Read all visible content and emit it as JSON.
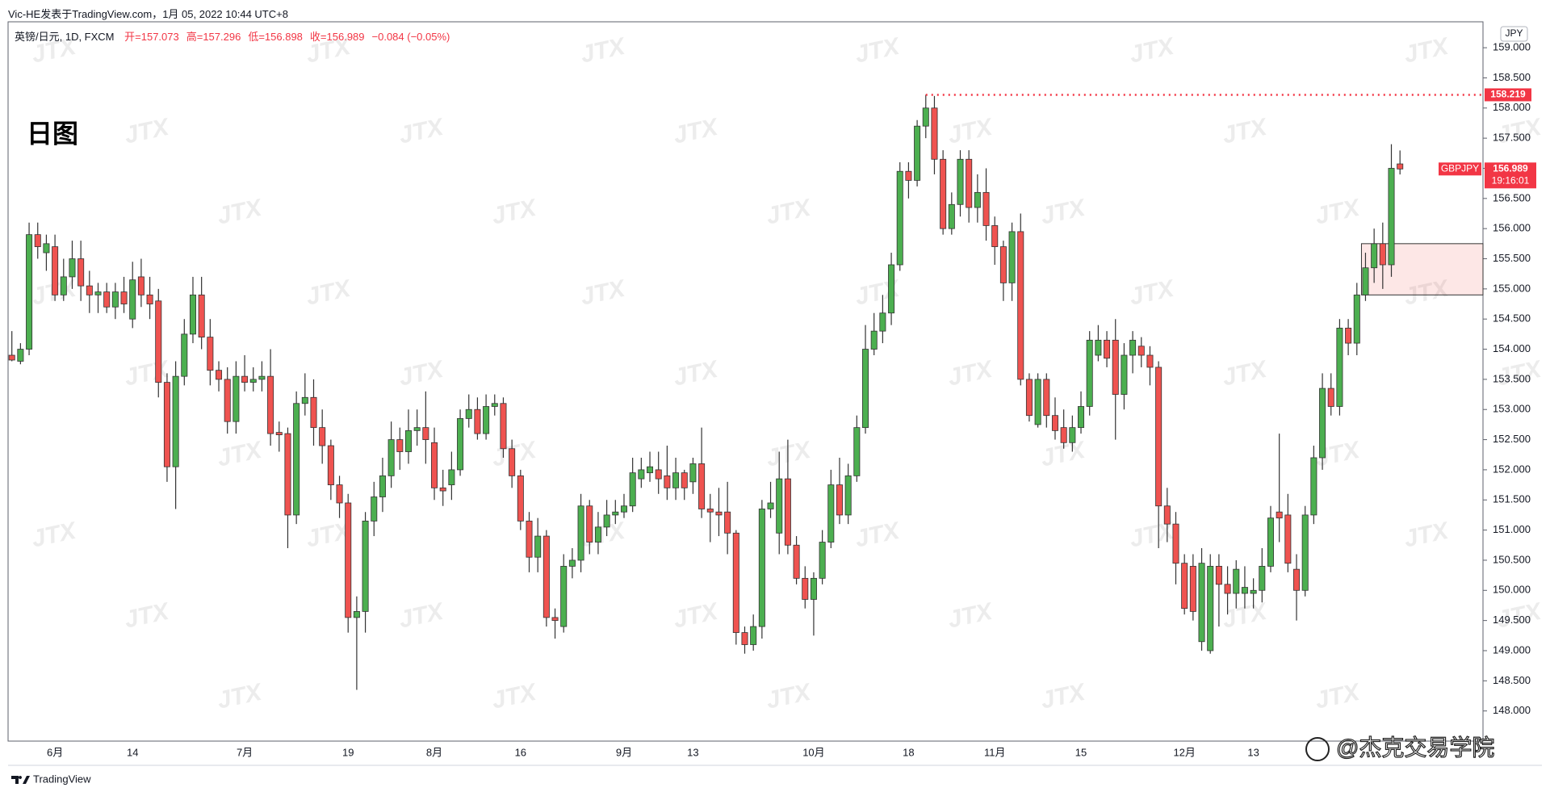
{
  "chart_data": {
    "type": "candlestick",
    "author_line": "Vic-HE发表于TradingView.com，1月 05, 2022 10:44 UTC+8",
    "symbol": "英镑/日元, 1D, FXCM",
    "ohlc_labels": [
      "开=157.073",
      "高=157.296",
      "低=156.898",
      "收=156.989"
    ],
    "change": "−0.084 (−0.05%)",
    "annotation": "日图",
    "currency": "JPY",
    "countdown": "19:16:01",
    "footer": "TradingView",
    "watermark": "JTX",
    "credit": "@杰克交易学院",
    "up_color": "#4caf50",
    "down_color": "#ef5350",
    "wick_color": "#333333",
    "grid": false,
    "ylim": [
      147.5,
      159.43
    ],
    "yticks": [
      {
        "value": 148,
        "label": "148.000"
      },
      {
        "value": 148.5,
        "label": "148.500"
      },
      {
        "value": 149,
        "label": "149.000"
      },
      {
        "value": 149.5,
        "label": "149.500"
      },
      {
        "value": 150,
        "label": "150.000"
      },
      {
        "value": 150.5,
        "label": "150.500"
      },
      {
        "value": 151,
        "label": "151.000"
      },
      {
        "value": 151.5,
        "label": "151.500"
      },
      {
        "value": 152,
        "label": "152.000"
      },
      {
        "value": 152.5,
        "label": "152.500"
      },
      {
        "value": 153,
        "label": "153.000"
      },
      {
        "value": 153.5,
        "label": "153.500"
      },
      {
        "value": 154,
        "label": "154.000"
      },
      {
        "value": 154.5,
        "label": "154.500"
      },
      {
        "value": 155,
        "label": "155.000"
      },
      {
        "value": 155.5,
        "label": "155.500"
      },
      {
        "value": 156,
        "label": "156.000"
      },
      {
        "value": 156.5,
        "label": "156.500"
      },
      {
        "value": 157,
        "label": "157.000"
      },
      {
        "value": 157.5,
        "label": "157.500"
      },
      {
        "value": 158,
        "label": "158.000"
      },
      {
        "value": 158.5,
        "label": "158.500"
      },
      {
        "value": 159,
        "label": "159.000"
      }
    ],
    "resistance": {
      "value": 158.219,
      "start_index": 106,
      "color": "#f23645"
    },
    "zone": {
      "low": 154.9,
      "high": 155.75,
      "start_index": 157,
      "color": "#ef5350"
    },
    "categories": [
      null,
      null,
      null,
      null,
      null,
      "6月",
      null,
      null,
      null,
      null,
      null,
      null,
      null,
      null,
      "14",
      null,
      null,
      null,
      null,
      null,
      null,
      null,
      null,
      null,
      null,
      null,
      null,
      "7月",
      null,
      null,
      null,
      null,
      null,
      null,
      null,
      null,
      null,
      null,
      null,
      "19",
      null,
      null,
      null,
      null,
      null,
      null,
      null,
      null,
      null,
      "8月",
      null,
      null,
      null,
      null,
      null,
      null,
      null,
      null,
      null,
      "16",
      null,
      null,
      null,
      null,
      null,
      null,
      null,
      null,
      null,
      null,
      null,
      "9月",
      null,
      null,
      null,
      null,
      null,
      null,
      null,
      "13",
      null,
      null,
      null,
      null,
      null,
      null,
      null,
      null,
      null,
      null,
      null,
      null,
      null,
      "10月",
      null,
      null,
      null,
      null,
      null,
      null,
      null,
      null,
      null,
      null,
      "18",
      null,
      null,
      null,
      null,
      null,
      null,
      null,
      null,
      null,
      "11月",
      null,
      null,
      null,
      null,
      null,
      null,
      null,
      null,
      null,
      "15",
      null,
      null,
      null,
      null,
      null,
      null,
      null,
      null,
      null,
      null,
      null,
      "12月",
      null,
      null,
      null,
      null,
      null,
      null,
      null,
      "13",
      null,
      null,
      null,
      null,
      null,
      null,
      null,
      null,
      null,
      null,
      null,
      null,
      null,
      null,
      null,
      null,
      null
    ],
    "series": [
      {
        "name": "GBPJPY",
        "color": "#f23645",
        "open": [
          153.9,
          153.8,
          154.0,
          155.9,
          155.6,
          155.7,
          154.9,
          155.2,
          155.5,
          155.05,
          154.9,
          154.95,
          154.7,
          154.95,
          154.5,
          155.2,
          154.9,
          154.8,
          153.45,
          152.05,
          153.55,
          154.25,
          154.9,
          154.2,
          153.65,
          153.5,
          152.8,
          153.55,
          153.45,
          153.5,
          153.55,
          152.62,
          152.6,
          151.25,
          153.1,
          153.2,
          152.7,
          152.4,
          151.75,
          151.45,
          149.55,
          149.65,
          151.15,
          151.55,
          151.9,
          152.5,
          152.3,
          152.65,
          152.7,
          152.45,
          151.7,
          151.75,
          152.0,
          152.85,
          153.0,
          152.6,
          153.05,
          153.1,
          152.35,
          151.9,
          151.15,
          150.55,
          150.9,
          149.55,
          149.4,
          150.4,
          150.5,
          151.4,
          150.8,
          151.05,
          151.25,
          151.3,
          151.4,
          151.85,
          151.95,
          152.0,
          151.9,
          151.7,
          151.95,
          151.8,
          152.1,
          151.35,
          151.3,
          151.3,
          150.95,
          149.3,
          149.1,
          149.4,
          151.35,
          150.95,
          151.85,
          150.75,
          150.2,
          149.85,
          150.2,
          150.8,
          151.75,
          151.25,
          151.9,
          152.7,
          154.0,
          154.3,
          154.6,
          155.4,
          156.95,
          156.8,
          157.7,
          158.0,
          157.15,
          156.0,
          156.4,
          157.15,
          156.35,
          156.6,
          156.05,
          155.7,
          155.1,
          155.95,
          153.5,
          152.75,
          153.5,
          152.9,
          152.7,
          152.45,
          152.7,
          153.05,
          153.9,
          154.15,
          154.15,
          153.25,
          153.9,
          154.05,
          153.9,
          153.7,
          151.4,
          151.1,
          150.45,
          150.4,
          149.15,
          149.0,
          150.4,
          150.1,
          149.95,
          149.95,
          149.95,
          150.0,
          150.4,
          151.3,
          151.25,
          150.35,
          150.0,
          151.25,
          152.2,
          153.35,
          153.05,
          154.35,
          154.1,
          154.9,
          155.35,
          155.75,
          155.4,
          157.073
        ],
        "high": [
          154.3,
          154.1,
          156.1,
          156.1,
          155.9,
          155.9,
          155.5,
          155.8,
          155.8,
          155.3,
          155.1,
          155.1,
          155.1,
          155.2,
          155.45,
          155.5,
          155.2,
          155.0,
          153.6,
          153.8,
          154.5,
          155.2,
          155.2,
          154.5,
          153.8,
          153.7,
          153.8,
          153.9,
          153.7,
          153.8,
          154.0,
          152.8,
          152.7,
          153.3,
          153.6,
          153.5,
          153.0,
          152.5,
          151.9,
          151.6,
          149.9,
          151.3,
          151.8,
          152.2,
          152.8,
          152.7,
          153.0,
          153.0,
          153.3,
          152.7,
          152.0,
          152.3,
          153.0,
          153.25,
          153.2,
          153.25,
          153.25,
          153.2,
          152.5,
          152.0,
          151.3,
          151.2,
          151.0,
          149.7,
          150.6,
          150.7,
          151.6,
          151.5,
          151.3,
          151.5,
          151.5,
          151.6,
          152.2,
          152.2,
          152.3,
          152.3,
          152.4,
          152.2,
          152.0,
          152.2,
          152.7,
          151.6,
          151.7,
          151.8,
          151.0,
          149.4,
          149.6,
          151.5,
          151.8,
          152.3,
          152.5,
          150.9,
          150.4,
          150.3,
          151.0,
          152.0,
          152.2,
          152.1,
          152.9,
          154.4,
          154.6,
          154.9,
          155.6,
          157.1,
          157.1,
          157.8,
          158.219,
          158.2,
          157.3,
          156.6,
          157.3,
          157.3,
          156.9,
          157.0,
          156.2,
          155.8,
          156.1,
          156.25,
          153.6,
          153.6,
          153.6,
          153.2,
          153.0,
          152.9,
          153.3,
          154.3,
          154.4,
          154.3,
          154.5,
          154.1,
          154.3,
          154.2,
          154.05,
          153.8,
          151.7,
          151.3,
          150.6,
          150.6,
          150.7,
          150.6,
          150.6,
          150.4,
          150.5,
          150.4,
          150.2,
          150.7,
          151.4,
          152.6,
          151.6,
          150.6,
          151.4,
          152.4,
          153.6,
          153.6,
          154.5,
          154.5,
          155.1,
          155.6,
          156.0,
          156.1,
          157.4,
          157.296
        ],
        "low": [
          153.8,
          153.75,
          153.9,
          155.5,
          155.3,
          154.8,
          154.8,
          155.0,
          154.8,
          154.6,
          154.6,
          154.6,
          154.5,
          154.6,
          154.35,
          154.7,
          154.5,
          153.2,
          151.8,
          151.35,
          153.4,
          154.1,
          154.0,
          153.4,
          153.3,
          152.6,
          152.6,
          153.3,
          153.3,
          153.3,
          152.4,
          152.3,
          150.7,
          151.1,
          152.9,
          152.4,
          152.1,
          151.5,
          151.2,
          149.3,
          148.35,
          149.3,
          150.9,
          151.3,
          151.7,
          152.0,
          152.1,
          152.4,
          152.1,
          151.5,
          151.4,
          151.5,
          151.9,
          152.7,
          152.5,
          152.5,
          152.9,
          152.2,
          151.7,
          151.0,
          150.3,
          150.3,
          149.4,
          149.2,
          149.3,
          150.2,
          150.3,
          150.6,
          150.6,
          150.9,
          151.1,
          151.2,
          151.3,
          151.7,
          151.8,
          151.6,
          151.5,
          151.5,
          151.5,
          151.6,
          151.2,
          150.8,
          150.9,
          150.6,
          149.1,
          148.95,
          149.0,
          149.2,
          151.2,
          150.6,
          150.6,
          150.1,
          149.7,
          149.25,
          150.1,
          150.7,
          151.1,
          151.1,
          151.8,
          152.6,
          153.9,
          154.1,
          154.4,
          155.3,
          156.5,
          156.7,
          157.5,
          156.9,
          155.9,
          155.9,
          156.2,
          156.1,
          156.1,
          155.8,
          155.4,
          154.8,
          154.8,
          153.4,
          152.8,
          152.7,
          152.7,
          152.5,
          152.35,
          152.3,
          152.6,
          152.9,
          153.8,
          153.7,
          152.5,
          153.0,
          153.6,
          153.7,
          153.4,
          150.7,
          150.8,
          150.1,
          149.6,
          149.5,
          149.0,
          148.95,
          149.4,
          149.6,
          149.7,
          149.7,
          149.7,
          149.8,
          150.3,
          150.8,
          150.3,
          149.5,
          149.9,
          151.1,
          152.0,
          152.9,
          152.9,
          153.9,
          153.9,
          154.8,
          155.1,
          155.0,
          155.2,
          156.898
        ],
        "close": [
          153.82,
          154.0,
          155.9,
          155.7,
          155.75,
          154.9,
          155.2,
          155.5,
          155.05,
          154.9,
          154.95,
          154.7,
          154.95,
          154.75,
          155.15,
          154.9,
          154.75,
          153.45,
          152.05,
          153.55,
          154.25,
          154.9,
          154.2,
          153.65,
          153.5,
          152.8,
          153.55,
          153.45,
          153.5,
          153.55,
          152.6,
          152.58,
          151.25,
          153.1,
          153.2,
          152.7,
          152.4,
          151.75,
          151.45,
          149.55,
          149.65,
          151.15,
          151.55,
          151.9,
          152.5,
          152.3,
          152.65,
          152.7,
          152.5,
          151.7,
          151.65,
          152.0,
          152.85,
          153.0,
          152.6,
          153.05,
          153.1,
          152.35,
          151.9,
          151.15,
          150.55,
          150.9,
          149.55,
          149.5,
          150.4,
          150.5,
          151.4,
          150.8,
          151.05,
          151.25,
          151.3,
          151.4,
          151.95,
          152.0,
          152.05,
          151.85,
          151.7,
          151.95,
          151.7,
          152.1,
          151.35,
          151.3,
          151.25,
          150.95,
          149.3,
          149.1,
          149.4,
          151.35,
          151.45,
          151.85,
          150.75,
          150.2,
          149.85,
          150.2,
          150.8,
          151.75,
          151.25,
          151.9,
          152.7,
          154.0,
          154.3,
          154.6,
          155.4,
          156.95,
          156.8,
          157.7,
          158.0,
          157.15,
          156.0,
          156.4,
          157.15,
          156.35,
          156.6,
          156.05,
          155.7,
          155.1,
          155.95,
          153.5,
          152.9,
          153.5,
          152.9,
          152.65,
          152.45,
          152.7,
          153.05,
          154.15,
          154.15,
          153.85,
          153.25,
          153.9,
          154.15,
          153.9,
          153.7,
          151.4,
          151.1,
          150.45,
          149.7,
          149.65,
          150.45,
          150.4,
          150.1,
          149.95,
          150.35,
          150.05,
          150.0,
          150.4,
          151.2,
          151.2,
          150.45,
          150.0,
          151.25,
          152.2,
          153.35,
          153.05,
          154.35,
          154.1,
          154.9,
          155.35,
          155.75,
          155.4,
          157.0,
          156.989
        ]
      }
    ]
  }
}
